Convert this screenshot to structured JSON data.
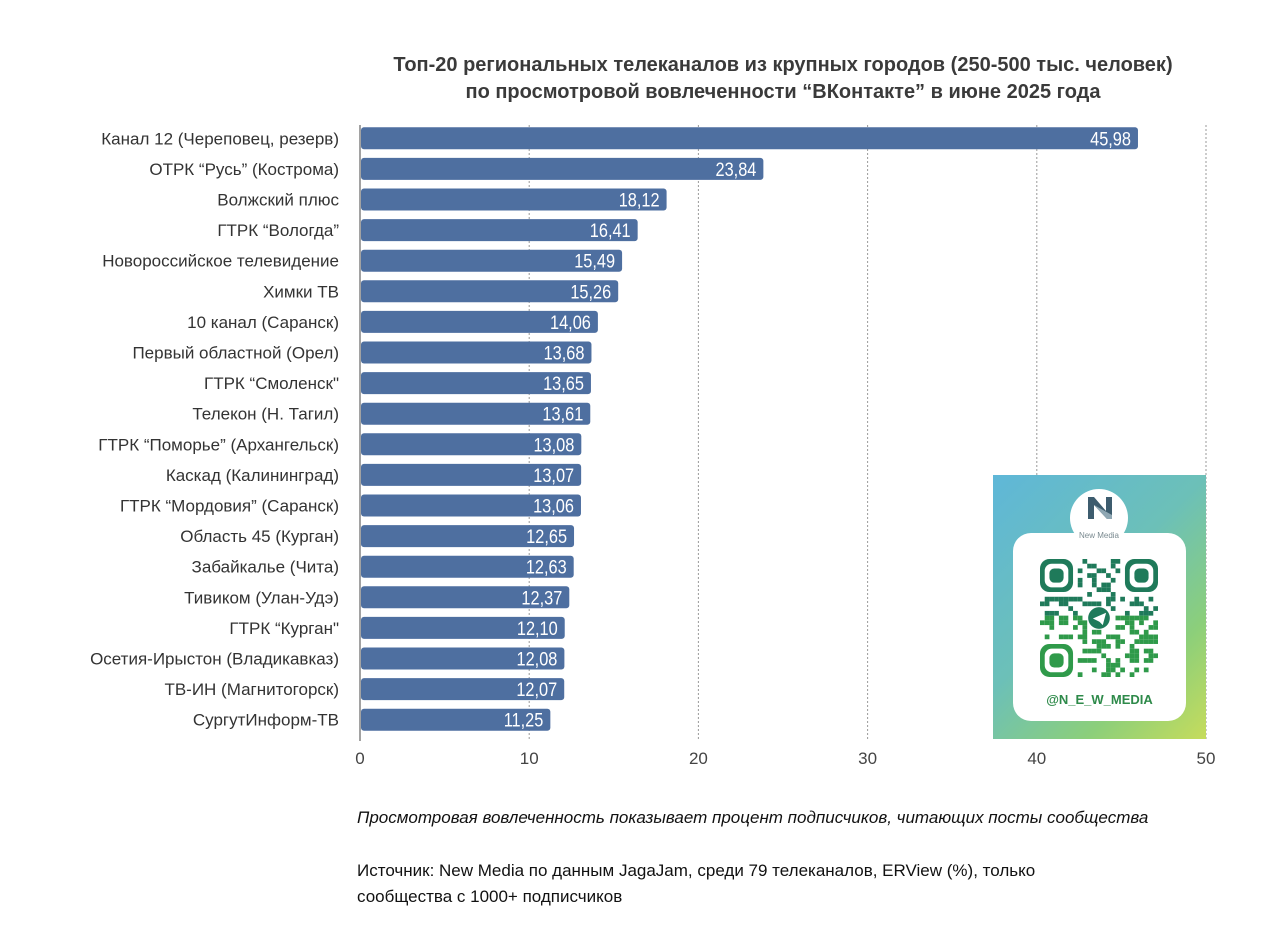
{
  "title": {
    "line1": "Топ-20 региональных телеканалов из крупных городов (250-500 тыс. человек)",
    "line2": "по просмотровой вовлеченности “ВКонтакте” в июне 2025 года"
  },
  "chart_data": {
    "type": "bar",
    "orientation": "horizontal",
    "categories": [
      "Канал 12 (Череповец, резерв)",
      "ОТРК “Русь” (Кострома)",
      "Волжский плюс",
      "ГТРК “Вологда”",
      "Новороссийское телевидение",
      "Химки ТВ",
      "10 канал (Саранск)",
      "Первый областной (Орел)",
      "ГТРК “Смоленск\"",
      "Телекон (Н. Тагил)",
      "ГТРК “Поморье” (Архангельск)",
      "Каскад (Калининград)",
      "ГТРК “Мордовия” (Саранск)",
      "Область 45 (Курган)",
      "Забайкалье (Чита)",
      "Тивиком (Улан-Удэ)",
      "ГТРК “Курган\"",
      "Осетия-Ирыстон (Владикавказ)",
      "ТВ-ИН (Магнитогорск)",
      "СургутИнформ-ТВ"
    ],
    "values": [
      45.98,
      23.84,
      18.12,
      16.41,
      15.49,
      15.26,
      14.06,
      13.68,
      13.65,
      13.61,
      13.08,
      13.07,
      13.06,
      12.65,
      12.63,
      12.37,
      12.1,
      12.08,
      12.07,
      11.25
    ],
    "value_labels": [
      "45,98",
      "23,84",
      "18,12",
      "16,41",
      "15,49",
      "15,26",
      "14,06",
      "13,68",
      "13,65",
      "13,61",
      "13,08",
      "13,07",
      "13,06",
      "12,65",
      "12,63",
      "12,37",
      "12,10",
      "12,08",
      "12,07",
      "11,25"
    ],
    "xlim": [
      0,
      50
    ],
    "x_ticks": [
      0,
      10,
      20,
      30,
      40,
      50
    ],
    "grid": true,
    "bar_color": "#4e6fa0",
    "label_color": "#ffffff"
  },
  "note": "Просмотровая вовлеченность показывает процент подписчиков, читающих посты сообщества",
  "source": "Источник: New Media по данным JagaJam, среди 79 телеканалов, ERView (%), только сообщества с 1000+ подписчиков",
  "qr": {
    "brand": "New Media",
    "handle": "@N_E_W_MEDIA"
  }
}
